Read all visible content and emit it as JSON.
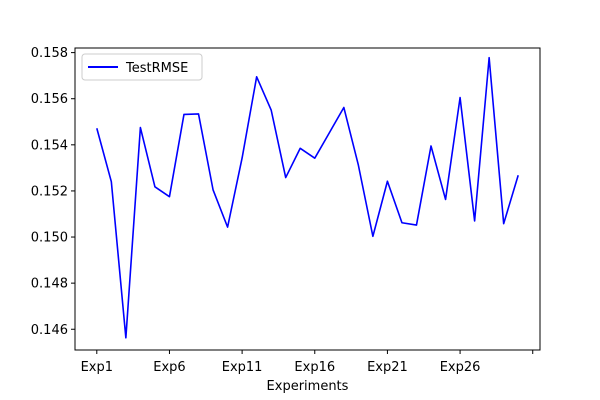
{
  "chart_data": {
    "type": "line",
    "title": "",
    "xlabel": "Experiments",
    "ylabel": "",
    "x_tick_labels": [
      "Exp1",
      "Exp6",
      "Exp11",
      "Exp16",
      "Exp21",
      "Exp26",
      ""
    ],
    "x_tick_positions": [
      1,
      6,
      11,
      16,
      21,
      26,
      31
    ],
    "xlim": [
      -0.5,
      31.5
    ],
    "ylim": [
      0.1451,
      0.1582
    ],
    "y_ticks": [
      0.146,
      0.148,
      0.15,
      0.152,
      0.154,
      0.156,
      0.158
    ],
    "y_tick_labels": [
      "0.146",
      "0.148",
      "0.150",
      "0.152",
      "0.154",
      "0.156",
      "0.158"
    ],
    "grid": false,
    "legend": {
      "position": "top-left",
      "entries": [
        "TestRMSE"
      ]
    },
    "series": [
      {
        "name": "TestRMSE",
        "color": "#0000ff",
        "x": [
          1,
          2,
          3,
          4,
          5,
          6,
          7,
          8,
          9,
          10,
          11,
          12,
          13,
          14,
          15,
          16,
          17,
          18,
          19,
          20,
          21,
          22,
          23,
          24,
          25,
          26,
          27,
          28,
          29,
          30
        ],
        "values": [
          0.15472,
          0.1524,
          0.14563,
          0.15475,
          0.15218,
          0.15175,
          0.15532,
          0.15534,
          0.15205,
          0.15043,
          0.15343,
          0.15695,
          0.15551,
          0.15258,
          0.15385,
          0.15342,
          0.15452,
          0.15562,
          0.15312,
          0.15003,
          0.15242,
          0.15062,
          0.15052,
          0.15395,
          0.15163,
          0.15605,
          0.1507,
          0.15778,
          0.15058,
          0.15268
        ]
      }
    ]
  }
}
